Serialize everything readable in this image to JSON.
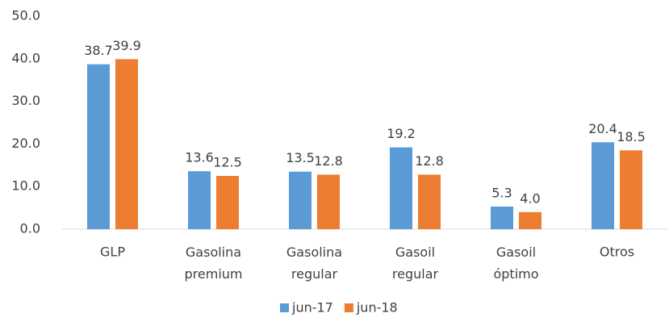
{
  "chart_data": {
    "type": "bar",
    "categories": [
      "GLP",
      "Gasolina premium",
      "Gasolina regular",
      "Gasoil regular",
      "Gasoil óptimo",
      "Otros"
    ],
    "series": [
      {
        "name": "jun-17",
        "color": "#5b9bd5",
        "values": [
          38.7,
          13.6,
          13.5,
          19.2,
          5.3,
          20.4
        ],
        "value_labels": [
          "38.7",
          "13.6",
          "13.5",
          "19.2",
          "5.3",
          "20.4"
        ]
      },
      {
        "name": "jun-18",
        "color": "#ed7d31",
        "values": [
          39.9,
          12.5,
          12.8,
          12.8,
          4.0,
          18.5
        ],
        "value_labels": [
          "39.9",
          "12.5",
          "12.8",
          "12.8",
          "4.0",
          "18.5"
        ]
      }
    ],
    "ylim": [
      0,
      50
    ],
    "yticks": [
      {
        "value": 0,
        "label": "0.0"
      },
      {
        "value": 10,
        "label": "10.0"
      },
      {
        "value": 20,
        "label": "20.0"
      },
      {
        "value": 30,
        "label": "30.0"
      },
      {
        "value": 40,
        "label": "40.0"
      },
      {
        "value": 50,
        "label": "50.0"
      }
    ],
    "grid": false,
    "legend": "bottom"
  }
}
